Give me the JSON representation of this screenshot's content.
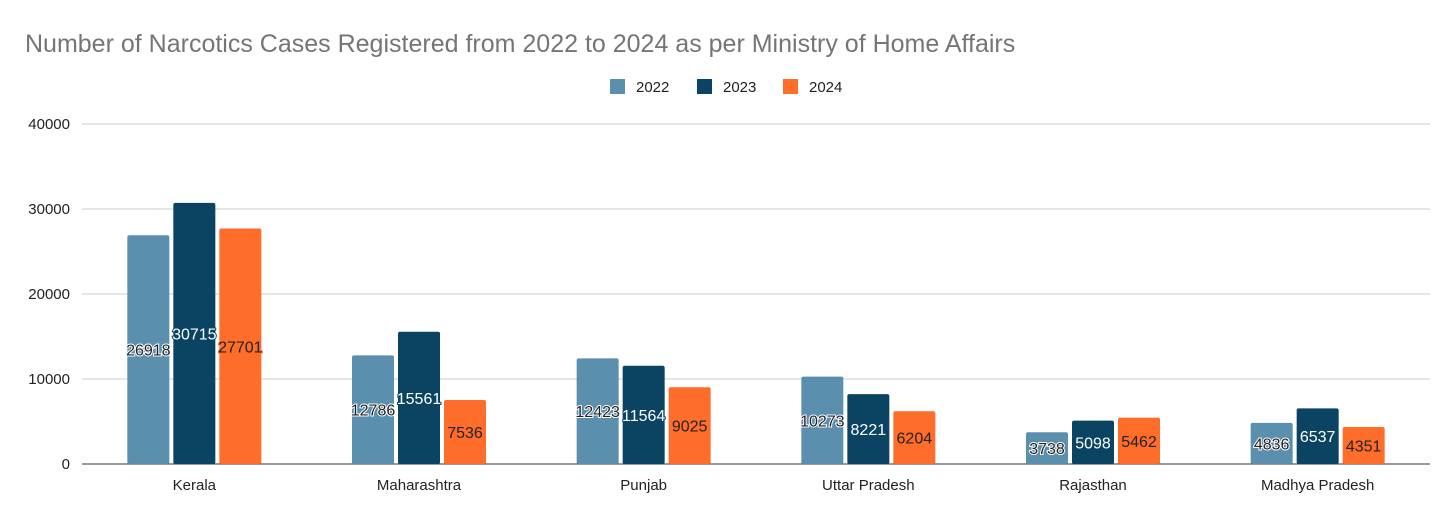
{
  "chart_data": {
    "type": "bar",
    "title": "Number of Narcotics Cases Registered from 2022 to 2024 as per Ministry of Home Affairs",
    "xlabel": "",
    "ylabel": "",
    "ylim": [
      0,
      40000
    ],
    "yticks": [
      0,
      10000,
      20000,
      30000,
      40000
    ],
    "grid": true,
    "legend_position": "top-center",
    "categories": [
      "Kerala",
      "Maharashtra",
      "Punjab",
      "Uttar Pradesh",
      "Rajasthan",
      "Madhya Pradesh"
    ],
    "series": [
      {
        "name": "2022",
        "color": "#5b8fae",
        "values": [
          26918,
          12786,
          12423,
          10273,
          3738,
          4836
        ]
      },
      {
        "name": "2023",
        "color": "#0b4462",
        "values": [
          30715,
          15561,
          11564,
          8221,
          5098,
          6537
        ]
      },
      {
        "name": "2024",
        "color": "#ff6d2b",
        "values": [
          27701,
          7536,
          9025,
          6204,
          5462,
          4351
        ]
      }
    ]
  }
}
